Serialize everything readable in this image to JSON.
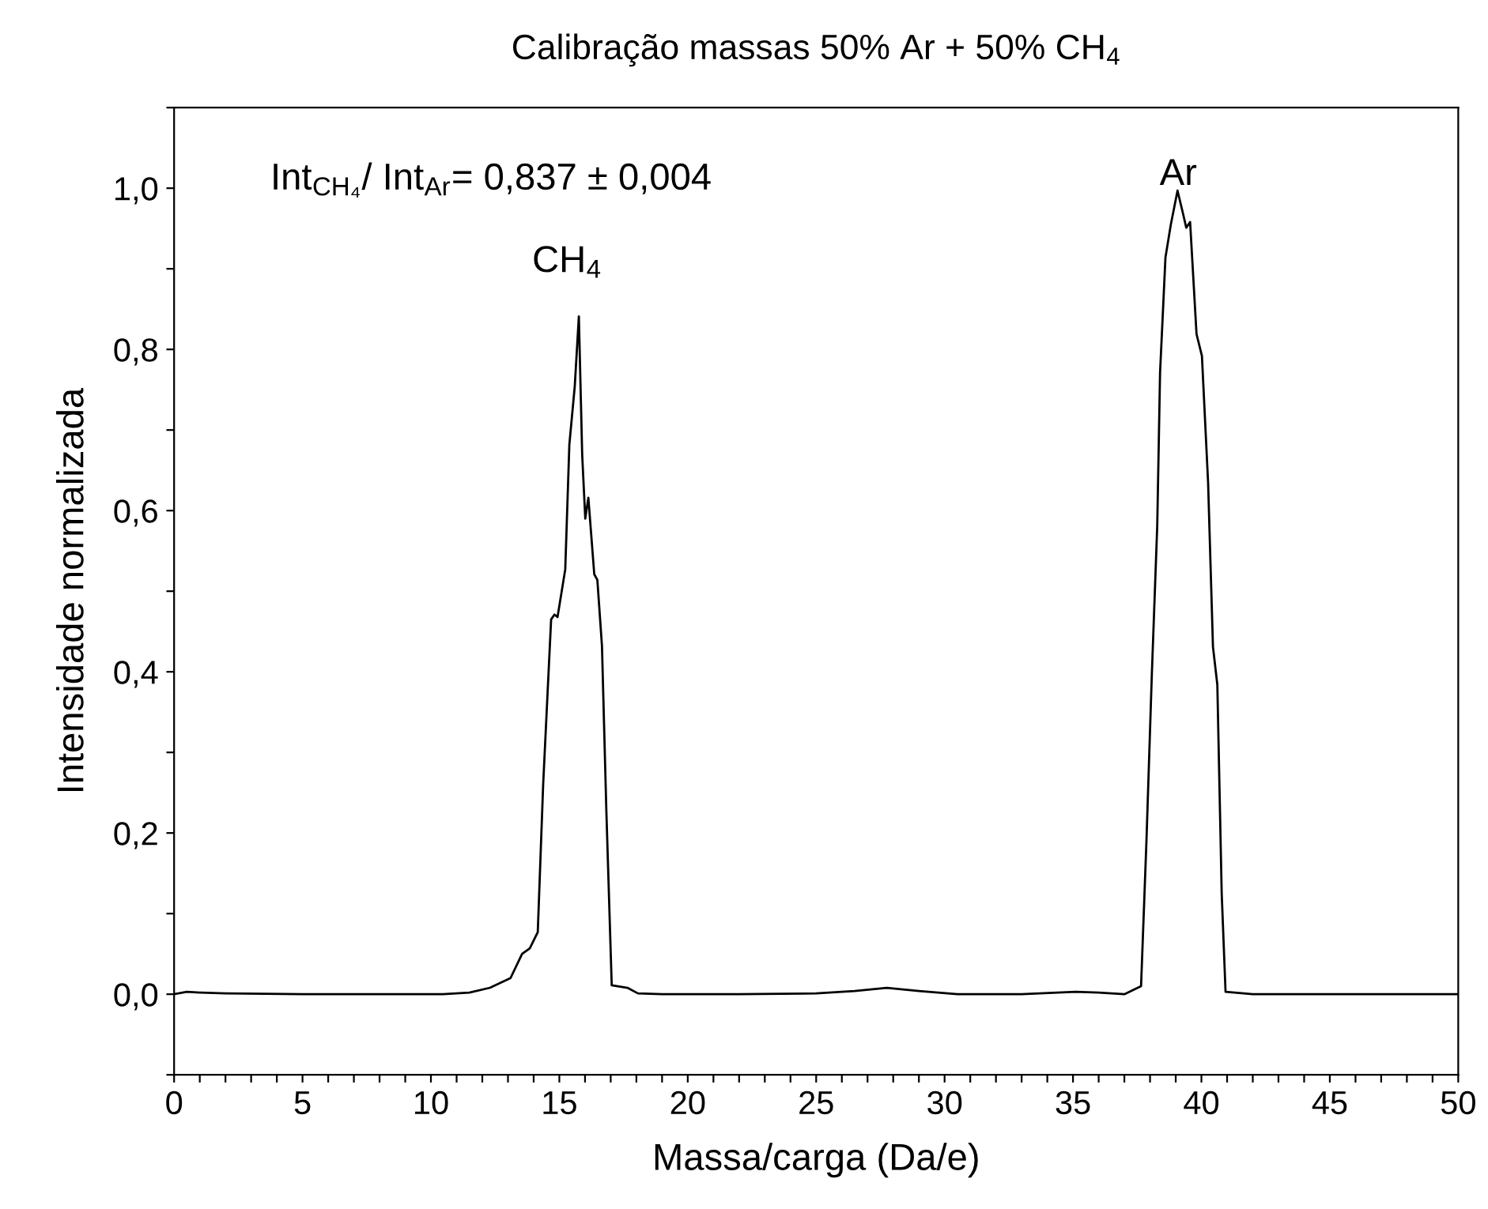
{
  "chart_data": {
    "type": "line",
    "title": "Calibração massas 50% Ar + 50% CH$_{4}$",
    "xlabel": "Massa/carga (Da/e)",
    "ylabel": "Intensidade normalizada",
    "annotations": [
      "Int$_{CH₄}$/ Int$_{Ar}$= 0,837 ± 0,004",
      "CH$_{4}$",
      "Ar"
    ],
    "series": [
      {
        "color": "#000000",
        "x": [
          0,
          0.5,
          1,
          2,
          5,
          8,
          10.47,
          11.5,
          12.3,
          13.1,
          13.55,
          13.85,
          14.16,
          14.37,
          14.68,
          14.81,
          14.93,
          15.23,
          15.39,
          15.6,
          15.76,
          15.89,
          16.01,
          16.13,
          16.36,
          16.48,
          16.66,
          16.83,
          17.04,
          17.65,
          18.06,
          19,
          22,
          25,
          26.5,
          27.75,
          29,
          30.5,
          33,
          35.1,
          36,
          37.0,
          37.65,
          37.86,
          38.07,
          38.28,
          38.39,
          38.6,
          38.81,
          39.07,
          39.28,
          39.41,
          39.56,
          39.81,
          40.02,
          40.26,
          40.45,
          40.62,
          40.79,
          40.94,
          42,
          45,
          50
        ],
        "values": [
          0.0,
          0.003,
          0.002,
          0.001,
          0.0,
          0.0,
          0.0,
          0.002,
          0.008,
          0.02,
          0.05,
          0.057,
          0.077,
          0.26,
          0.465,
          0.471,
          0.468,
          0.527,
          0.682,
          0.754,
          0.841,
          0.669,
          0.59,
          0.616,
          0.521,
          0.514,
          0.432,
          0.228,
          0.011,
          0.008,
          0.001,
          0.0,
          0.0,
          0.001,
          0.004,
          0.008,
          0.004,
          0.0,
          0.0,
          0.003,
          0.002,
          0.0,
          0.01,
          0.19,
          0.397,
          0.581,
          0.771,
          0.914,
          0.955,
          0.997,
          0.969,
          0.951,
          0.958,
          0.819,
          0.792,
          0.635,
          0.431,
          0.384,
          0.125,
          0.003,
          0.0,
          0.0,
          0.0
        ]
      }
    ],
    "xlim": [
      0,
      50
    ],
    "ylim": [
      -0.1,
      1.1
    ],
    "xticks": [
      0,
      {
        "value": 1,
        "label": null
      },
      {
        "value": 2,
        "label": null
      },
      {
        "value": 3,
        "label": null
      },
      {
        "value": 4,
        "label": null
      },
      5,
      {
        "value": 6,
        "label": null
      },
      {
        "value": 7,
        "label": null
      },
      {
        "value": 8,
        "label": null
      },
      {
        "value": 9,
        "label": null
      },
      10,
      {
        "value": 11,
        "label": null
      },
      {
        "value": 12,
        "label": null
      },
      {
        "value": 13,
        "label": null
      },
      {
        "value": 14,
        "label": null
      },
      15,
      {
        "value": 16,
        "label": null
      },
      {
        "value": 17,
        "label": null
      },
      {
        "value": 18,
        "label": null
      },
      {
        "value": 19,
        "label": null
      },
      20,
      {
        "value": 21,
        "label": null
      },
      {
        "value": 22,
        "label": null
      },
      {
        "value": 23,
        "label": null
      },
      {
        "value": 24,
        "label": null
      },
      25,
      {
        "value": 26,
        "label": null
      },
      {
        "value": 27,
        "label": null
      },
      {
        "value": 28,
        "label": null
      },
      {
        "value": 29,
        "label": null
      },
      30,
      {
        "value": 31,
        "label": null
      },
      {
        "value": 32,
        "label": null
      },
      {
        "value": 33,
        "label": null
      },
      {
        "value": 34,
        "label": null
      },
      35,
      {
        "value": 36,
        "label": null
      },
      {
        "value": 37,
        "label": null
      },
      {
        "value": 38,
        "label": null
      },
      {
        "value": 39,
        "label": null
      },
      40,
      {
        "value": 41,
        "label": null
      },
      {
        "value": 42,
        "label": null
      },
      {
        "value": 43,
        "label": null
      },
      {
        "value": 44,
        "label": null
      },
      45,
      {
        "value": 46,
        "label": null
      },
      {
        "value": 47,
        "label": null
      },
      {
        "value": 48,
        "label": null
      },
      {
        "value": 49,
        "label": null
      },
      50
    ],
    "yticks": [
      {
        "value": -0.1,
        "label": null
      },
      {
        "value": 0.0,
        "label": "0,0"
      },
      {
        "value": 0.1,
        "label": null
      },
      {
        "value": 0.2,
        "label": "0,2"
      },
      {
        "value": 0.3,
        "label": null
      },
      {
        "value": 0.4,
        "label": "0,4"
      },
      {
        "value": 0.5,
        "label": null
      },
      {
        "value": 0.6,
        "label": "0,6"
      },
      {
        "value": 0.7,
        "label": null
      },
      {
        "value": 0.8,
        "label": "0,8"
      },
      {
        "value": 0.9,
        "label": null
      },
      {
        "value": 1.0,
        "label": "1,0"
      },
      {
        "value": 1.1,
        "label": null
      }
    ],
    "grid": false,
    "legend": false,
    "marker": "none",
    "line_style": "solid"
  }
}
